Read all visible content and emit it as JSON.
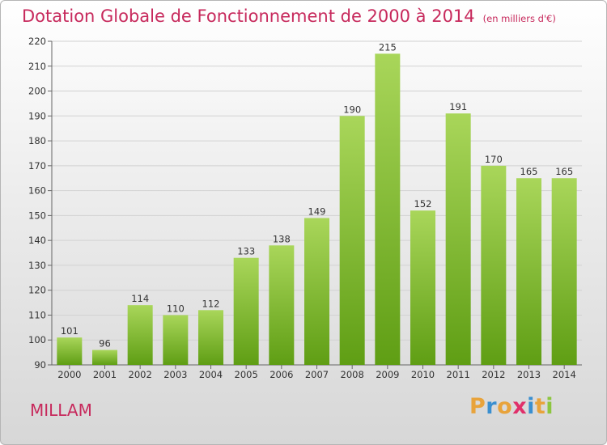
{
  "header": {
    "title": "Dotation Globale de Fonctionnement de 2000 à 2014",
    "unit": "(en milliers d'€)"
  },
  "footer": {
    "city": "MILLAM",
    "logo_letters": [
      "P",
      "r",
      "o",
      "x",
      "i",
      "t",
      "i"
    ],
    "logo_colors": [
      "#e8a33b",
      "#3a8fd0",
      "#e8a33b",
      "#e0306a",
      "#3a8fd0",
      "#e8a33b",
      "#8cc63f"
    ]
  },
  "colors": {
    "title": "#c7295c",
    "bar_top": "#a9d65a",
    "bar_bottom": "#5f9e14"
  },
  "chart_data": {
    "type": "bar",
    "title": "Dotation Globale de Fonctionnement de 2000 à 2014",
    "subtitle": "(en milliers d'€)",
    "xlabel": "",
    "ylabel": "",
    "categories": [
      "2000",
      "2001",
      "2002",
      "2003",
      "2004",
      "2005",
      "2006",
      "2007",
      "2008",
      "2009",
      "2010",
      "2011",
      "2012",
      "2013",
      "2014"
    ],
    "values": [
      101,
      96,
      114,
      110,
      112,
      133,
      138,
      149,
      190,
      215,
      152,
      191,
      170,
      165,
      165
    ],
    "ylim": [
      90,
      220
    ],
    "yticks": [
      90,
      100,
      110,
      120,
      130,
      140,
      150,
      160,
      170,
      180,
      190,
      200,
      210,
      220
    ],
    "grid": true,
    "legend": "none"
  }
}
